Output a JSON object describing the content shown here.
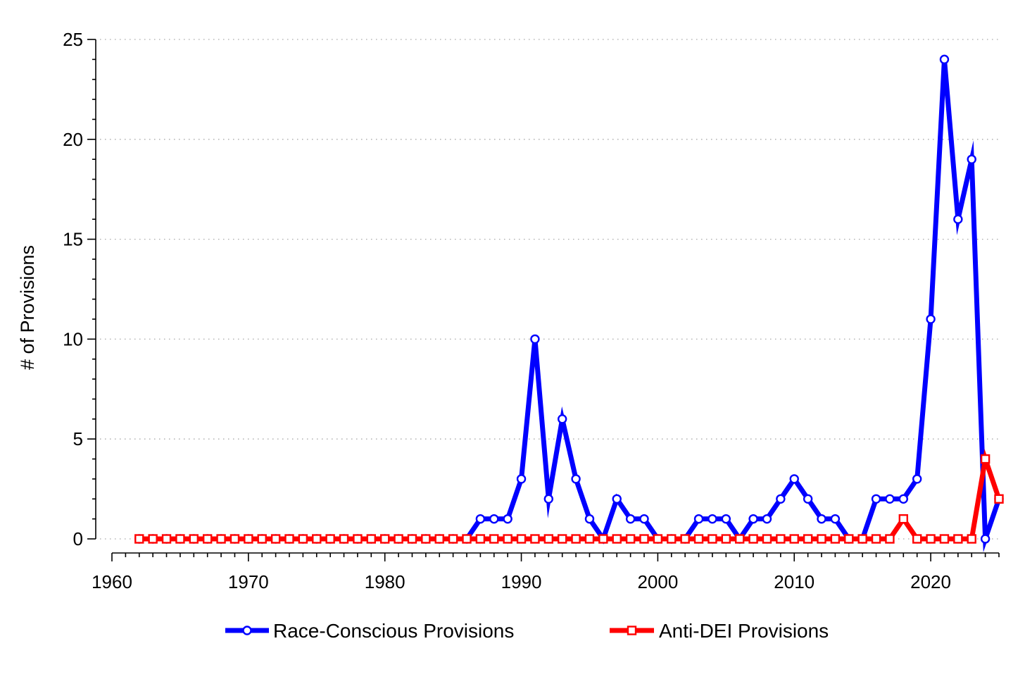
{
  "chart_data": {
    "type": "line",
    "title": "",
    "xlabel": "",
    "ylabel": "# of Provisions",
    "xlim": [
      1960,
      2025
    ],
    "ylim": [
      0,
      25
    ],
    "grid": true,
    "legend_position": "bottom",
    "x_ticks": [
      "1960",
      "1970",
      "1980",
      "1990",
      "2000",
      "2010",
      "2020"
    ],
    "y_ticks": [
      "0",
      "5",
      "10",
      "15",
      "20",
      "25"
    ],
    "x": [
      1962,
      1963,
      1964,
      1965,
      1966,
      1967,
      1968,
      1969,
      1970,
      1971,
      1972,
      1973,
      1974,
      1975,
      1976,
      1977,
      1978,
      1979,
      1980,
      1981,
      1982,
      1983,
      1984,
      1985,
      1986,
      1987,
      1988,
      1989,
      1990,
      1991,
      1992,
      1993,
      1994,
      1995,
      1996,
      1997,
      1998,
      1999,
      2000,
      2001,
      2002,
      2003,
      2004,
      2005,
      2006,
      2007,
      2008,
      2009,
      2010,
      2011,
      2012,
      2013,
      2014,
      2015,
      2016,
      2017,
      2018,
      2019,
      2020,
      2021,
      2022,
      2023,
      2024,
      2025
    ],
    "series": [
      {
        "name": "Race-Conscious Provisions",
        "color": "#0000ff",
        "marker": "circle",
        "values": [
          0,
          0,
          0,
          0,
          0,
          0,
          0,
          0,
          0,
          0,
          0,
          0,
          0,
          0,
          0,
          0,
          0,
          0,
          0,
          0,
          0,
          0,
          0,
          0,
          0,
          1,
          1,
          1,
          3,
          10,
          2,
          6,
          3,
          1,
          0,
          2,
          1,
          1,
          0,
          0,
          0,
          1,
          1,
          1,
          0,
          1,
          1,
          2,
          3,
          2,
          1,
          1,
          0,
          0,
          2,
          2,
          2,
          3,
          11,
          24,
          16,
          19,
          0,
          2
        ]
      },
      {
        "name": "Anti-DEI Provisions",
        "color": "#ff0000",
        "marker": "square",
        "values": [
          0,
          0,
          0,
          0,
          0,
          0,
          0,
          0,
          0,
          0,
          0,
          0,
          0,
          0,
          0,
          0,
          0,
          0,
          0,
          0,
          0,
          0,
          0,
          0,
          0,
          0,
          0,
          0,
          0,
          0,
          0,
          0,
          0,
          0,
          0,
          0,
          0,
          0,
          0,
          0,
          0,
          0,
          0,
          0,
          0,
          0,
          0,
          0,
          0,
          0,
          0,
          0,
          0,
          0,
          0,
          0,
          1,
          0,
          0,
          0,
          0,
          0,
          4,
          2
        ]
      }
    ]
  }
}
